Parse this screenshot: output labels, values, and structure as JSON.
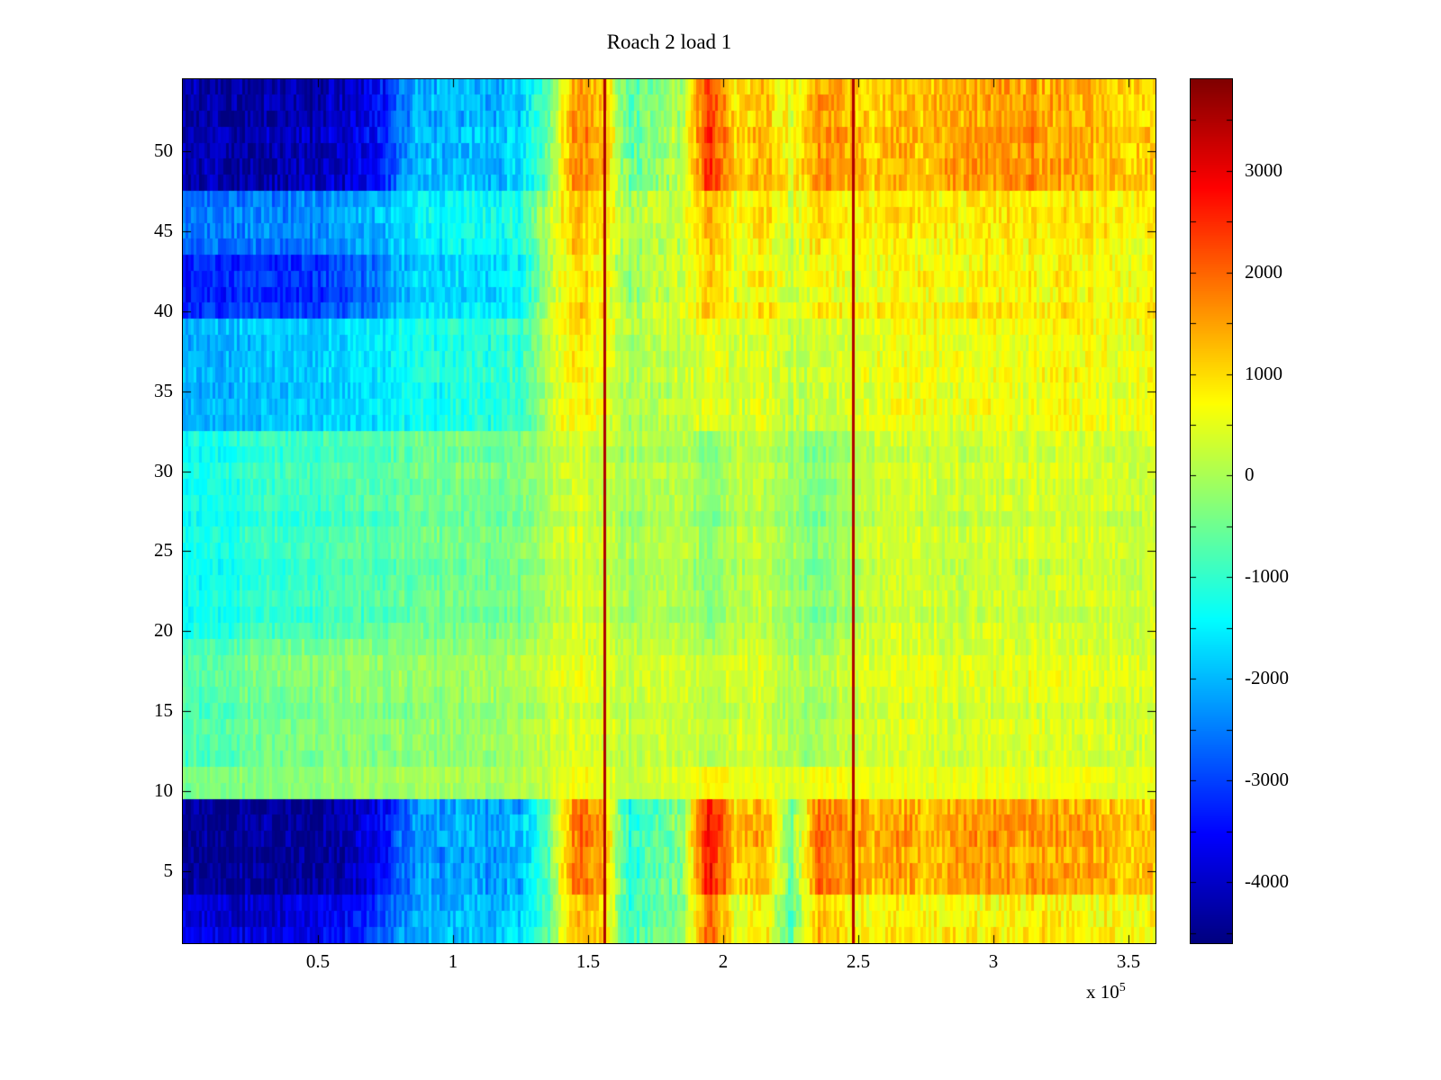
{
  "chart": {
    "background": "#ffffff",
    "title": "Roach 2 load 1"
  },
  "chart_data": {
    "type": "heatmap",
    "title": "Roach 2 load 1",
    "colormap": "jet",
    "clim": [
      -4600,
      3900
    ],
    "x_range": [
      0,
      360000
    ],
    "rows": 54,
    "x_axis": {
      "tick_values": [
        50000,
        100000,
        150000,
        200000,
        250000,
        300000,
        350000
      ],
      "tick_labels": [
        "0.5",
        "1",
        "1.5",
        "2",
        "2.5",
        "3",
        "3.5"
      ],
      "exp_prefix": "x 10",
      "exp_value": "5"
    },
    "y_axis": {
      "range": [
        0.5,
        54.5
      ],
      "tick_values": [
        5,
        10,
        15,
        20,
        25,
        30,
        35,
        40,
        45,
        50
      ],
      "tick_labels": [
        "5",
        "10",
        "15",
        "20",
        "25",
        "30",
        "35",
        "40",
        "45",
        "50"
      ]
    },
    "colorbar": {
      "tick_values": [
        3000,
        2000,
        1000,
        0,
        -1000,
        -2000,
        -3000,
        -4000
      ],
      "tick_labels": [
        "3000",
        "2000",
        "1000",
        "0",
        "-1000",
        "-2000",
        "-3000",
        "-4000"
      ],
      "minor_tick_step": 500
    },
    "x_bins": {
      "start": 5000,
      "step": 10000,
      "count": 36
    },
    "noise": {
      "cell_amp": 360,
      "col_amp": 150,
      "row_amp": 120
    },
    "row_bands": [
      {
        "name": "bottom_edge",
        "row_from": 1,
        "row_to": 3,
        "noise_scale": 1.1,
        "values": [
          -3800,
          -3800,
          -3900,
          -3800,
          -3700,
          -3600,
          -3400,
          -2800,
          -2100,
          -2000,
          -1900,
          -2000,
          -1800,
          -600,
          1400,
          1100,
          -900,
          -600,
          -300,
          2100,
          400,
          900,
          -700,
          1300,
          900,
          600,
          800,
          700,
          900,
          800,
          700,
          900,
          800,
          700,
          800,
          700
        ]
      },
      {
        "name": "deep_bottom",
        "row_from": 4,
        "row_to": 9,
        "noise_scale": 1.2,
        "values": [
          -4400,
          -4450,
          -4400,
          -4350,
          -4400,
          -4300,
          -4100,
          -3400,
          -2300,
          -2200,
          -2100,
          -2200,
          -2000,
          -700,
          1900,
          1600,
          -1100,
          -700,
          -300,
          2900,
          1100,
          1500,
          -500,
          1900,
          1700,
          1300,
          1500,
          1300,
          1600,
          1700,
          1500,
          1600,
          1400,
          1500,
          1300,
          1200
        ]
      },
      {
        "name": "light_stripe",
        "row_from": 10,
        "row_to": 11,
        "noise_scale": 0.5,
        "values": [
          -500,
          -400,
          -450,
          -400,
          -350,
          -300,
          -250,
          -200,
          -150,
          -100,
          -150,
          -100,
          -50,
          200,
          600,
          500,
          100,
          200,
          300,
          800,
          400,
          500,
          300,
          600,
          500,
          400,
          500,
          450,
          500,
          550,
          500,
          450,
          500,
          450,
          400,
          400
        ]
      },
      {
        "name": "mid_lower",
        "row_from": 12,
        "row_to": 19,
        "noise_scale": 0.7,
        "values": [
          -800,
          -700,
          -500,
          -400,
          -400,
          -350,
          -300,
          -300,
          -250,
          -200,
          -200,
          -150,
          -100,
          300,
          500,
          400,
          200,
          250,
          300,
          100,
          300,
          350,
          0,
          -100,
          200,
          350,
          400,
          450,
          400,
          450,
          400,
          450,
          400,
          350,
          400,
          350
        ]
      },
      {
        "name": "mid_upper",
        "row_from": 20,
        "row_to": 32,
        "noise_scale": 0.7,
        "values": [
          -1300,
          -1200,
          -1000,
          -900,
          -900,
          -850,
          -800,
          -700,
          -550,
          -500,
          -450,
          -450,
          -400,
          100,
          400,
          300,
          0,
          50,
          100,
          -300,
          100,
          150,
          -100,
          -400,
          0,
          250,
          300,
          350,
          300,
          350,
          300,
          350,
          300,
          300,
          350,
          300
        ]
      },
      {
        "name": "upper_blue",
        "row_from": 33,
        "row_to": 39,
        "noise_scale": 0.9,
        "values": [
          -2100,
          -2000,
          -1900,
          -1900,
          -1850,
          -1800,
          -1700,
          -1500,
          -1250,
          -1200,
          -1150,
          -1100,
          -1000,
          200,
          900,
          600,
          100,
          150,
          200,
          600,
          300,
          500,
          200,
          300,
          400,
          500,
          600,
          650,
          600,
          700,
          650,
          600,
          700,
          650,
          600,
          600
        ]
      },
      {
        "name": "dark_blue_band",
        "row_from": 40,
        "row_to": 43,
        "noise_scale": 1.0,
        "values": [
          -3300,
          -3200,
          -3100,
          -3200,
          -3100,
          -3000,
          -2800,
          -2300,
          -1800,
          -1750,
          -1700,
          -1650,
          -1500,
          0,
          1100,
          800,
          -200,
          200,
          300,
          1200,
          500,
          800,
          300,
          700,
          600,
          650,
          700,
          750,
          700,
          800,
          750,
          700,
          800,
          750,
          700,
          700
        ]
      },
      {
        "name": "upper_mid_blue",
        "row_from": 44,
        "row_to": 47,
        "noise_scale": 1.0,
        "values": [
          -2600,
          -2500,
          -2400,
          -2500,
          -2400,
          -2300,
          -2200,
          -1900,
          -1500,
          -1450,
          -1400,
          -1350,
          -1200,
          100,
          1300,
          900,
          0,
          150,
          250,
          1400,
          600,
          900,
          400,
          1000,
          800,
          750,
          800,
          850,
          800,
          900,
          850,
          800,
          900,
          850,
          800,
          800
        ]
      },
      {
        "name": "top_dark",
        "row_from": 48,
        "row_to": 54,
        "noise_scale": 1.2,
        "values": [
          -4200,
          -4250,
          -4300,
          -4200,
          -4150,
          -4100,
          -3900,
          -3200,
          -2100,
          -2000,
          -1950,
          -2000,
          -1800,
          -500,
          1700,
          1400,
          -600,
          -300,
          100,
          2500,
          1000,
          1300,
          600,
          1600,
          1400,
          1100,
          1300,
          1200,
          1500,
          1600,
          1500,
          1600,
          1400,
          1300,
          1200,
          1100
        ]
      }
    ],
    "vlines": [
      {
        "x": 156000,
        "value": 3500
      },
      {
        "x": 248000,
        "value": 3500
      }
    ]
  }
}
